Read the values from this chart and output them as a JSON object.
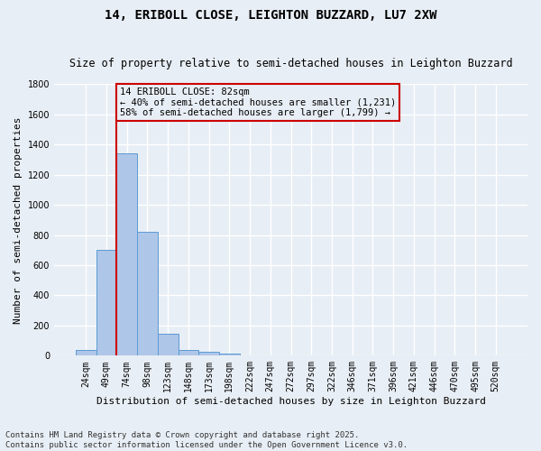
{
  "title": "14, ERIBOLL CLOSE, LEIGHTON BUZZARD, LU7 2XW",
  "subtitle": "Size of property relative to semi-detached houses in Leighton Buzzard",
  "xlabel": "Distribution of semi-detached houses by size in Leighton Buzzard",
  "ylabel": "Number of semi-detached properties",
  "bar_color": "#aec6e8",
  "bar_edge_color": "#5b9bd5",
  "background_color": "#e8eef5",
  "grid_color": "#ffffff",
  "categories": [
    "24sqm",
    "49sqm",
    "74sqm",
    "98sqm",
    "123sqm",
    "148sqm",
    "173sqm",
    "198sqm",
    "222sqm",
    "247sqm",
    "272sqm",
    "297sqm",
    "322sqm",
    "346sqm",
    "371sqm",
    "396sqm",
    "421sqm",
    "446sqm",
    "470sqm",
    "495sqm",
    "520sqm"
  ],
  "values": [
    40,
    700,
    1340,
    820,
    145,
    38,
    25,
    15,
    0,
    0,
    0,
    0,
    0,
    0,
    0,
    0,
    0,
    0,
    0,
    0,
    0
  ],
  "ylim": [
    0,
    1800
  ],
  "yticks": [
    0,
    200,
    400,
    600,
    800,
    1000,
    1200,
    1400,
    1600,
    1800
  ],
  "vline_color": "#cc0000",
  "vline_position": 1.5,
  "annotation_text": "14 ERIBOLL CLOSE: 82sqm\n← 40% of semi-detached houses are smaller (1,231)\n58% of semi-detached houses are larger (1,799) →",
  "annotation_box_color": "#cc0000",
  "footer_text": "Contains HM Land Registry data © Crown copyright and database right 2025.\nContains public sector information licensed under the Open Government Licence v3.0.",
  "title_fontsize": 10,
  "subtitle_fontsize": 8.5,
  "xlabel_fontsize": 8,
  "ylabel_fontsize": 8,
  "tick_fontsize": 7,
  "annotation_fontsize": 7.5,
  "footer_fontsize": 6.5
}
